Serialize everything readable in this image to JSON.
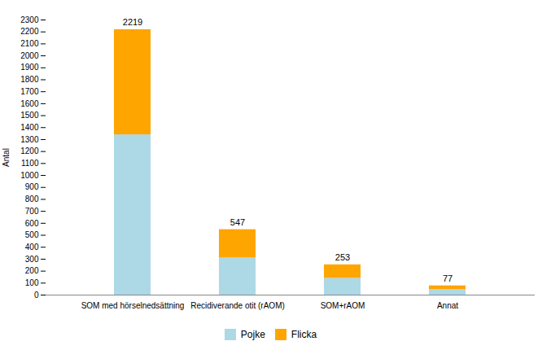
{
  "chart_data": {
    "type": "bar",
    "stacked": true,
    "ylabel": "Antal",
    "categories": [
      "SOM med hörselnedsättning",
      "Recidiverande otit (rAOM)",
      "SOM+rAOM",
      "Annat"
    ],
    "series": [
      {
        "name": "Pojke",
        "color": "#ADD8E6",
        "values": [
          1340,
          310,
          140,
          45
        ]
      },
      {
        "name": "Flicka",
        "color": "#FFA500",
        "values": [
          879,
          237,
          113,
          32
        ]
      }
    ],
    "totals": [
      2219,
      547,
      253,
      77
    ],
    "ylim": [
      0,
      2300
    ],
    "yticks": [
      0,
      100,
      200,
      300,
      400,
      500,
      600,
      700,
      800,
      900,
      1000,
      1100,
      1200,
      1300,
      1400,
      1500,
      1600,
      1700,
      1800,
      1900,
      2000,
      2100,
      2200,
      2300
    ],
    "grid": false,
    "legend": "bottom"
  }
}
